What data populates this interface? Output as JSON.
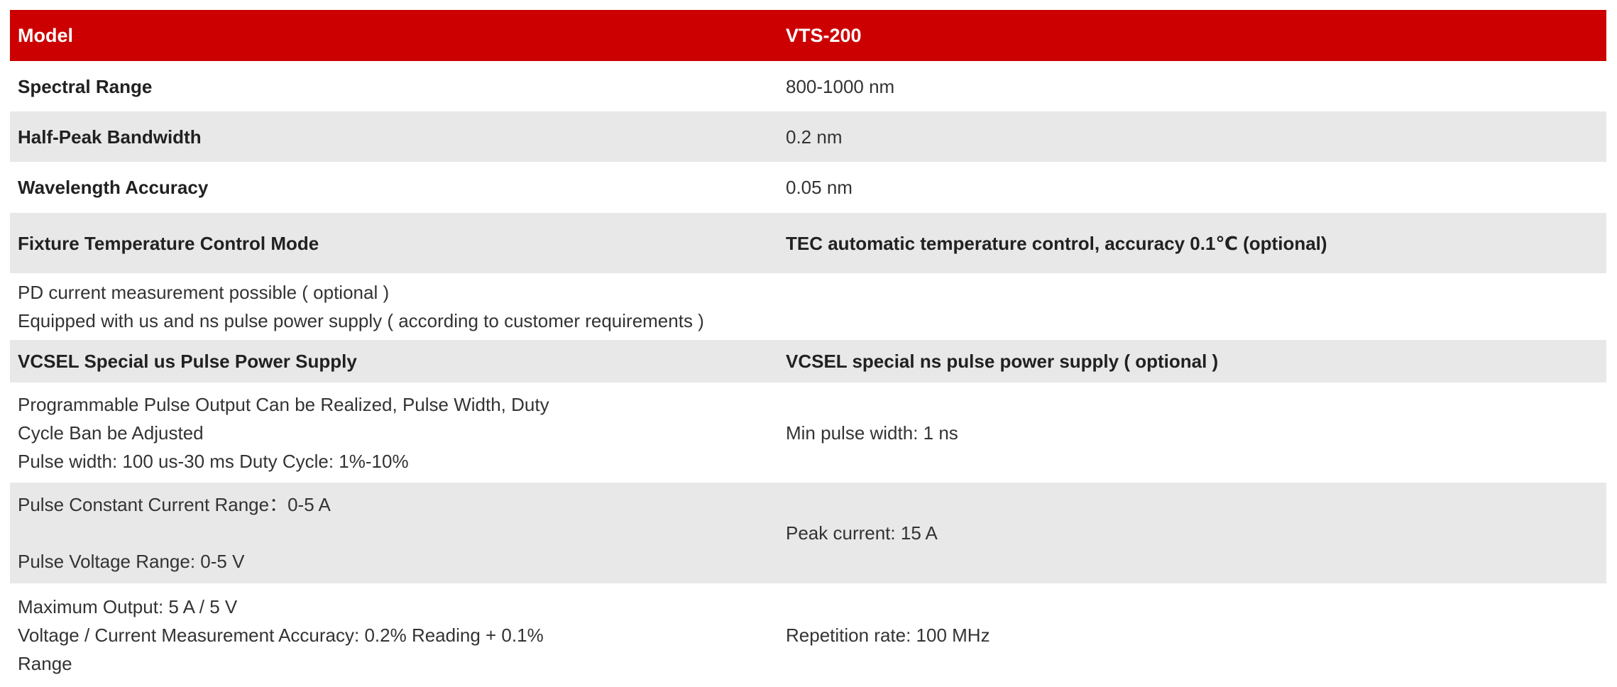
{
  "colors": {
    "header_bg": "#cc0000",
    "header_text": "#ffffff",
    "alt_row_bg": "#e8e8e8",
    "body_text": "#333333"
  },
  "table": {
    "header": {
      "label": "Model",
      "value": "VTS-200"
    },
    "rows": [
      {
        "label": "Spectral Range",
        "value": "800-1000 nm"
      },
      {
        "label": "Half-Peak Bandwidth",
        "value": "0.2 nm"
      },
      {
        "label": "Wavelength Accuracy",
        "value": "0.05 nm"
      },
      {
        "label": "Fixture Temperature Control Mode",
        "value": "TEC automatic temperature control, accuracy 0.1℃ (optional)"
      },
      {
        "full": "PD current measurement possible ( optional )\nEquipped with us and ns pulse power supply ( according to customer requirements )"
      },
      {
        "label": "VCSEL Special us Pulse Power Supply",
        "value": "VCSEL special ns pulse power supply ( optional )"
      },
      {
        "label": "Programmable Pulse Output Can be Realized, Pulse Width, Duty\nCycle Ban be Adjusted\nPulse width: 100 us-30 ms Duty Cycle: 1%-10%",
        "value": "Min pulse width: 1 ns"
      },
      {
        "label": "Pulse Constant Current Range：0-5 A\n\nPulse Voltage Range: 0-5 V",
        "value": "Peak current: 15 A"
      },
      {
        "label": "Maximum Output: 5 A / 5 V\nVoltage / Current Measurement Accuracy: 0.2% Reading + 0.1%\nRange",
        "value": "Repetition rate: 100 MHz"
      }
    ]
  }
}
